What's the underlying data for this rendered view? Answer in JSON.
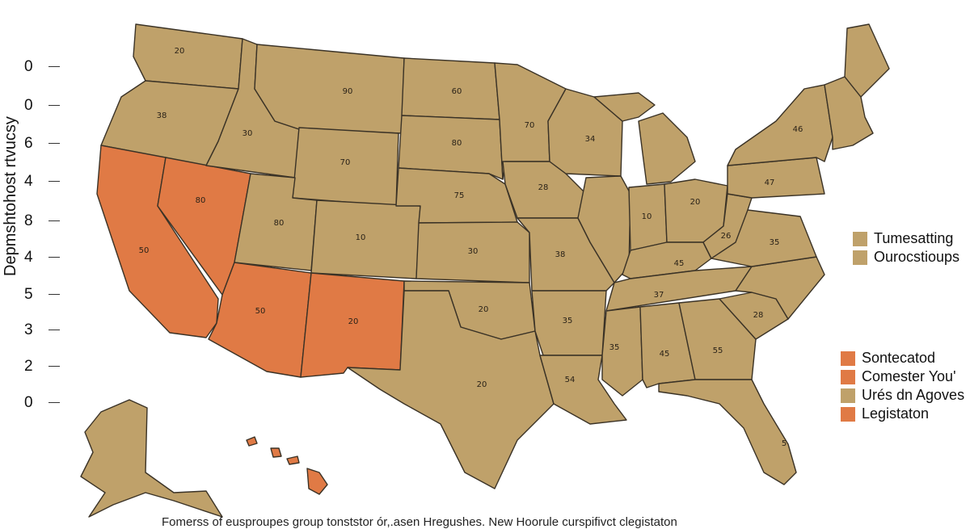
{
  "colors": {
    "state_fill": "#bfa16a",
    "highlight_fill": "#e07a45",
    "border": "#3a3226",
    "background": "#ffffff"
  },
  "axis": {
    "title": "Depmshtohost rtvucsy",
    "ticks": [
      "0",
      "0",
      "6",
      "4",
      "8",
      "4",
      "5",
      "3",
      "2",
      "0"
    ]
  },
  "legend_top": [
    {
      "label": "Tumesatting",
      "color": "#bfa16a"
    },
    {
      "label": "Ourocstioups",
      "color": "#bfa16a"
    }
  ],
  "legend_bottom": [
    {
      "label": "Sontecatod",
      "color": "#e07a45"
    },
    {
      "label": "Comester You'",
      "color": "#e07a45"
    },
    {
      "label": "Urés dn Agoves",
      "color": "#bfa16a"
    },
    {
      "label": "Legistaton",
      "color": "#e07a45"
    }
  ],
  "caption": "Fomerss of eusproupes group tonststor ór,.asen Hregushes. New Hoorule curspifivct clegistaton",
  "map_data": {
    "regions": [
      {
        "id": "WA",
        "value": "20",
        "highlighted": false
      },
      {
        "id": "OR",
        "value": "38",
        "highlighted": false
      },
      {
        "id": "CA",
        "value": "50",
        "highlighted": true
      },
      {
        "id": "NV",
        "value": "80",
        "highlighted": true
      },
      {
        "id": "ID",
        "value": "30",
        "highlighted": false
      },
      {
        "id": "MT",
        "value": "90",
        "highlighted": false
      },
      {
        "id": "WY",
        "value": "70",
        "highlighted": false
      },
      {
        "id": "UT",
        "value": "80",
        "highlighted": false
      },
      {
        "id": "CO",
        "value": "10",
        "highlighted": false
      },
      {
        "id": "AZ",
        "value": "50",
        "highlighted": true
      },
      {
        "id": "NM",
        "value": "20",
        "highlighted": true
      },
      {
        "id": "ND",
        "value": "60",
        "highlighted": false
      },
      {
        "id": "SD",
        "value": "80",
        "highlighted": false
      },
      {
        "id": "NE",
        "value": "75",
        "highlighted": false
      },
      {
        "id": "KS",
        "value": "30",
        "highlighted": false
      },
      {
        "id": "OK",
        "value": "20",
        "highlighted": false
      },
      {
        "id": "TX",
        "value": "20",
        "highlighted": false
      },
      {
        "id": "MN",
        "value": "70",
        "highlighted": false
      },
      {
        "id": "IA",
        "value": "28",
        "highlighted": false
      },
      {
        "id": "MO",
        "value": "38",
        "highlighted": false
      },
      {
        "id": "AR",
        "value": "35",
        "highlighted": false
      },
      {
        "id": "LA",
        "value": "54",
        "highlighted": false
      },
      {
        "id": "WI",
        "value": "34",
        "highlighted": false
      },
      {
        "id": "IL",
        "value": "",
        "highlighted": false
      },
      {
        "id": "IN",
        "value": "10",
        "highlighted": false
      },
      {
        "id": "OH",
        "value": "20",
        "highlighted": false
      },
      {
        "id": "KY",
        "value": "45",
        "highlighted": false
      },
      {
        "id": "TN",
        "value": "37",
        "highlighted": false
      },
      {
        "id": "MS",
        "value": "35",
        "highlighted": false
      },
      {
        "id": "AL",
        "value": "45",
        "highlighted": false
      },
      {
        "id": "GA",
        "value": "55",
        "highlighted": false
      },
      {
        "id": "FL",
        "value": "5",
        "highlighted": false
      },
      {
        "id": "SC",
        "value": "28",
        "highlighted": false
      },
      {
        "id": "NC",
        "value": "",
        "highlighted": false
      },
      {
        "id": "VA",
        "value": "35",
        "highlighted": false
      },
      {
        "id": "WV",
        "value": "26",
        "highlighted": false
      },
      {
        "id": "PA",
        "value": "47",
        "highlighted": false
      },
      {
        "id": "NY",
        "value": "46",
        "highlighted": false
      },
      {
        "id": "MI",
        "value": "",
        "highlighted": false
      },
      {
        "id": "NE_STATES",
        "value": "",
        "highlighted": false
      },
      {
        "id": "ME",
        "value": "",
        "highlighted": false
      },
      {
        "id": "AK",
        "value": "",
        "highlighted": false
      },
      {
        "id": "HI",
        "value": "",
        "highlighted": true
      }
    ]
  }
}
